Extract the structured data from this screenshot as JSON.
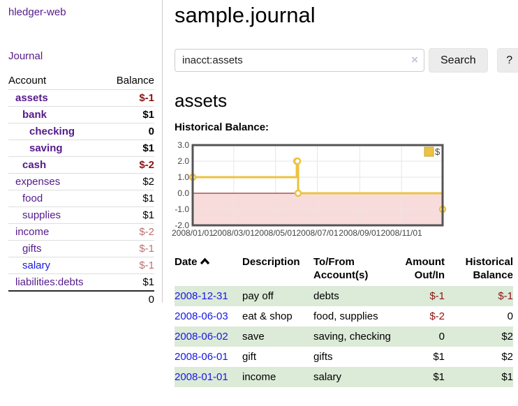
{
  "app": {
    "brand": "hledger-web"
  },
  "sidebar": {
    "nav": {
      "journal": "Journal"
    },
    "accounts": {
      "headers": {
        "account": "Account",
        "balance": "Balance"
      },
      "rows": [
        {
          "account": "assets",
          "balance": "$-1",
          "depth": 1,
          "matched": true
        },
        {
          "account": "bank",
          "balance": "$1",
          "depth": 2,
          "matched": true
        },
        {
          "account": "checking",
          "balance": "0",
          "depth": 3,
          "matched": true
        },
        {
          "account": "saving",
          "balance": "$1",
          "depth": 3,
          "matched": true
        },
        {
          "account": "cash",
          "balance": "$-2",
          "depth": 2,
          "matched": true
        },
        {
          "account": "expenses",
          "balance": "$2",
          "depth": 1,
          "matched": false
        },
        {
          "account": "food",
          "balance": "$1",
          "depth": 2,
          "matched": false
        },
        {
          "account": "supplies",
          "balance": "$1",
          "depth": 2,
          "matched": false
        },
        {
          "account": "income",
          "balance": "$-2",
          "depth": 1,
          "matched": false
        },
        {
          "account": "gifts",
          "balance": "$-1",
          "depth": 2,
          "matched": false
        },
        {
          "account": "salary",
          "balance": "$-1",
          "depth": 2,
          "matched": false
        },
        {
          "account": "liabilities:debts",
          "balance": "$1",
          "depth": 1,
          "matched": false
        }
      ],
      "total": "0"
    }
  },
  "main": {
    "title": "sample.journal",
    "search": {
      "value": "inacct:assets",
      "clear_icon": "×",
      "button_label": "Search",
      "help_label": "?"
    },
    "section_title": "assets",
    "chart_label": "Historical Balance:"
  },
  "chart_data": {
    "type": "line",
    "title": "Historical Balance",
    "step": true,
    "x_range": [
      "2008/01/01",
      "2008/12/31"
    ],
    "x_span_days": 365,
    "ylim": [
      -2,
      3
    ],
    "grid": true,
    "legend_position": "top-right",
    "series": [
      {
        "name": "$",
        "points": [
          {
            "date": "2008-01-01",
            "day": 0,
            "value": 1
          },
          {
            "date": "2008-06-01",
            "day": 152,
            "value": 2
          },
          {
            "date": "2008-06-02",
            "day": 153,
            "value": 2
          },
          {
            "date": "2008-06-03",
            "day": 154,
            "value": 0
          },
          {
            "date": "2008-12-31",
            "day": 365,
            "value": -1
          }
        ]
      }
    ],
    "y_ticks": [
      {
        "v": 3,
        "label": "3.0"
      },
      {
        "v": 2,
        "label": "2.0"
      },
      {
        "v": 1,
        "label": "1.0"
      },
      {
        "v": 0,
        "label": "0.0"
      },
      {
        "v": -1,
        "label": "-1.0"
      },
      {
        "v": -2,
        "label": "-2.0"
      }
    ],
    "x_ticks": [
      {
        "day": 0,
        "label": "2008/01/01"
      },
      {
        "day": 60,
        "label": "2008/03/01"
      },
      {
        "day": 121,
        "label": "2008/05/01"
      },
      {
        "day": 182,
        "label": "2008/07/01"
      },
      {
        "day": 244,
        "label": "2008/09/01"
      },
      {
        "day": 305,
        "label": "2008/11/01"
      }
    ],
    "colors": {
      "line": "#edc240",
      "marker_fill": "#ffffff",
      "below_zero_fill": "#f8dcdc",
      "zero_line": "#8b0000",
      "grid": "#e6e6e6",
      "border": "#545454",
      "tick_text": "#444444",
      "legend_box_border": "#cda433",
      "legend_text": "#444444"
    }
  },
  "register": {
    "headers": {
      "date": "Date",
      "description": "Description",
      "tofrom_line1": "To/From",
      "tofrom_line2": "Account(s)",
      "amount_line1": "Amount",
      "amount_line2": "Out/In",
      "hist_line1": "Historical",
      "hist_line2": "Balance",
      "sort_icon": "caret-up"
    },
    "rows": [
      {
        "date": "2008-12-31",
        "description": "pay off",
        "accounts": "debts",
        "amount": "$-1",
        "balance": "$-1"
      },
      {
        "date": "2008-06-03",
        "description": "eat & shop",
        "accounts": "food, supplies",
        "amount": "$-2",
        "balance": "0"
      },
      {
        "date": "2008-06-02",
        "description": "save",
        "accounts": "saving, checking",
        "amount": "0",
        "balance": "$2"
      },
      {
        "date": "2008-06-01",
        "description": "gift",
        "accounts": "gifts",
        "amount": "$1",
        "balance": "$2"
      },
      {
        "date": "2008-01-01",
        "description": "income",
        "accounts": "salary",
        "amount": "$1",
        "balance": "$1"
      }
    ]
  }
}
